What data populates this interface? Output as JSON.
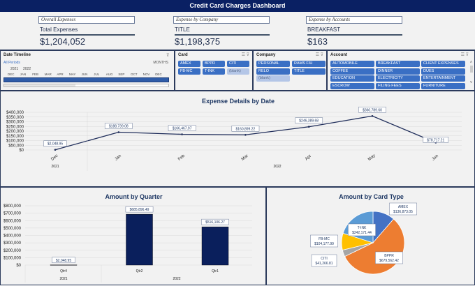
{
  "title": "Credit Card Charges Dashboard",
  "kpis": [
    {
      "caption": "Overall Expenses",
      "label": "Total Expenses",
      "value": "$1,204,052"
    },
    {
      "caption": "Expense by Company",
      "label": "TITLE",
      "value": "$1,198,375"
    },
    {
      "caption": "Expense by Accounts",
      "label": "BREAKFAST",
      "value": "$163"
    }
  ],
  "timeline": {
    "title": "Date Timeline",
    "all_periods": "All Periods",
    "level": "MONTHS",
    "years": [
      "2021",
      "2022"
    ],
    "months": [
      "DEC",
      "JAN",
      "FEB",
      "MAR",
      "APR",
      "MAY",
      "JUN",
      "JUL",
      "AUG",
      "SEP",
      "OCT",
      "NOV",
      "DEC"
    ]
  },
  "card_slicer": {
    "title": "Card",
    "items": [
      "AMEX",
      "BPPR",
      "CITI",
      "FB-MC",
      "T-INK",
      "(blank)"
    ]
  },
  "company_slicer": {
    "title": "Company",
    "items": [
      "PERSONAL",
      "RAMS F/H",
      "RELO",
      "TITLE",
      "(blank)"
    ]
  },
  "account_slicer": {
    "title": "Account",
    "items": [
      "AUTOMOBILE",
      "BREAKFAST",
      "CLIENT EXPENSES",
      "COFFEE",
      "DINNER",
      "DUES",
      "EDUCATION",
      "ELECTRICITY",
      "ENTERTAINMENT",
      "ESCROW",
      "FILING FEES",
      "FURNITURE"
    ]
  },
  "chart_data": [
    {
      "type": "line",
      "title": "Expense Details by Date",
      "categories": [
        "Dec",
        "Jan",
        "Feb",
        "Mar",
        "Apr",
        "May",
        "Jun"
      ],
      "year_groups": [
        {
          "label": "2021",
          "months": [
            "Dec"
          ]
        },
        {
          "label": "2022",
          "months": [
            "Jan",
            "Feb",
            "Mar",
            "Apr",
            "May",
            "Jun"
          ]
        }
      ],
      "values": [
        2048.95,
        188739.08,
        166467.97,
        160899.22,
        246389.68,
        360789.6,
        78717.21
      ],
      "data_labels": [
        "$2,048.95",
        "$188,739.08",
        "$166,467.97",
        "$160,899.22",
        "$246,389.68",
        "$360,789.60",
        "$78,717.21"
      ],
      "yticks": [
        "$400,000",
        "$350,000",
        "$300,000",
        "$250,000",
        "$200,000",
        "$150,000",
        "$100,000",
        "$50,000",
        "$0"
      ],
      "ylim": [
        0,
        400000
      ],
      "color": "#1f2d5a"
    },
    {
      "type": "bar",
      "title": "Amount by Quarter",
      "categories": [
        "Qtr4",
        "Qtr2",
        "Qtr1"
      ],
      "year_groups": [
        "2021",
        "2022"
      ],
      "values": [
        2048.95,
        685896.49,
        516106.27
      ],
      "data_labels": [
        "$2,048.95",
        "$685,896.49",
        "$516,106.27"
      ],
      "yticks": [
        "$800,000",
        "$700,000",
        "$600,000",
        "$500,000",
        "$400,000",
        "$300,000",
        "$200,000",
        "$100,000",
        "$0"
      ],
      "ylim": [
        0,
        800000
      ],
      "color": "#0a1f5c"
    },
    {
      "type": "pie",
      "title": "Amount by Card Type",
      "categories": [
        "AMEX",
        "BPPR",
        "CITI",
        "FB-MC",
        "T-INK"
      ],
      "values": [
        136873.05,
        679562.42,
        41266.81,
        104177.99,
        242171.44
      ],
      "data_labels": [
        "$136,873.05",
        "$679,562.42",
        "$41,266.81",
        "$104,177.99",
        "$242,171.44"
      ],
      "colors": [
        "#4472c4",
        "#ed7d31",
        "#a5a5a5",
        "#ffc000",
        "#5b9bd5"
      ]
    }
  ]
}
